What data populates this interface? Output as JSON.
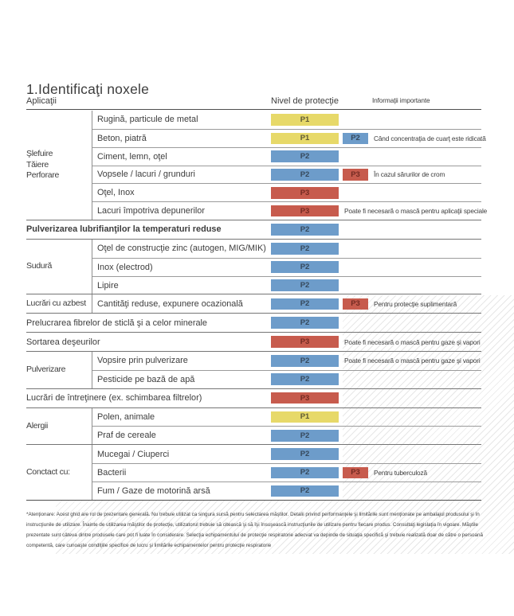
{
  "title": "1.Identificaţi noxele",
  "columns": {
    "applications": "Aplicaţii",
    "protection": "Nivel de protecţie",
    "info": "Informaţii importante"
  },
  "badge_colors": {
    "P1": "#e7d969",
    "P2": "#6d9cca",
    "P3": "#c75b4d"
  },
  "badge_text_colors": {
    "P1": "#5f5a35",
    "P2": "#36495c",
    "P3": "#722a22"
  },
  "table": {
    "groups": [
      {
        "label": "Şlefuire\nTăiere\nPerforare",
        "rows": [
          {
            "label": "Rugină, particule de metal",
            "badge": "P1"
          },
          {
            "label": "Beton, piatră",
            "badge": "P1",
            "badge2": "P2",
            "info": "Când concentraţia de cuarţ este ridicată"
          },
          {
            "label": "Ciment, lemn, oţel",
            "badge": "P2"
          },
          {
            "label": "Vopsele / lacuri / grunduri",
            "badge": "P2",
            "badge2": "P3",
            "info": "În cazul sărurilor de crom"
          },
          {
            "label": "Oţel, Inox",
            "badge": "P3"
          },
          {
            "label": "Lacuri împotriva depunerilor",
            "badge": "P3",
            "info": "Poate fi necesară o mască pentru aplicaţii speciale"
          }
        ]
      },
      {
        "full_row": true,
        "bold": true,
        "label": "Pulverizarea lubrifianţilor la temperaturi reduse",
        "badge": "P2"
      },
      {
        "label": "Sudură",
        "rows": [
          {
            "label": "Oţel de construcţie zinc (autogen, MIG/MIK)",
            "badge": "P2"
          },
          {
            "label": "Inox (electrod)",
            "badge": "P2"
          },
          {
            "label": "Lipire",
            "badge": "P2"
          }
        ]
      },
      {
        "label": "Lucrări cu azbest",
        "rows": [
          {
            "label": "Cantităţi reduse, expunere ocazională",
            "badge": "P2",
            "badge2": "P3",
            "info": "Pentru protecţie suplimentară"
          }
        ]
      },
      {
        "full_row": true,
        "label": "Prelucrarea fibrelor de sticlă şi a celor minerale",
        "badge": "P2"
      },
      {
        "full_row": true,
        "label": "Sortarea deşeurilor",
        "badge": "P3",
        "info": "Poate fi necesară o mască pentru gaze şi vapori"
      },
      {
        "label": "Pulverizare",
        "rows": [
          {
            "label": "Vopsire prin pulverizare",
            "badge": "P2",
            "info": "Poate fi necesară o mască pentru gaze şi vapori"
          },
          {
            "label": "Pesticide pe bază de apă",
            "badge": "P2"
          }
        ]
      },
      {
        "full_row": true,
        "label": "Lucrări de întreţinere (ex. schimbarea filtrelor)",
        "badge": "P3"
      },
      {
        "label": "Alergii",
        "rows": [
          {
            "label": "Polen, animale",
            "badge": "P1"
          },
          {
            "label": "Praf de cereale",
            "badge": "P2"
          }
        ]
      },
      {
        "label": "Conctact cu:",
        "rows": [
          {
            "label": "Mucegai / Ciuperci",
            "badge": "P2"
          },
          {
            "label": "Bacterii",
            "badge": "P2",
            "badge2": "P3",
            "info": "Pentru tuberculoză"
          },
          {
            "label": "Fum / Gaze de motorină arsă",
            "badge": "P2"
          }
        ]
      }
    ]
  },
  "footnote": "*Atenţionare: Acest ghid are rol de prezentare generală. Nu trebuie utilizat ca singura sursă pentru selectarea măştilor. Detalii privind performanţele şi limitările sunt menţionate pe ambalajul produsului şi în instrucţiunile de utilizare. Înainte de utilizarea măştilor de protecţie, utilizatorul trebuie să citească şi să îşi însuşească instrucţiunile de utilizare pentru fiecare produs. Consultaţi legislaţia în vigoare. Măştile prezentate sunt câteva dintre produsele care pot fi luate în considerare. Selecţia echipamentului de protecţie respiratorie adecvat va depinde de situaţia specifică şi trebuie realizată doar de către o persoană competentă, care cunoaşte condiţiile specifice de lucru şi limitările echipamentelor pentru protecţie respiratorie"
}
